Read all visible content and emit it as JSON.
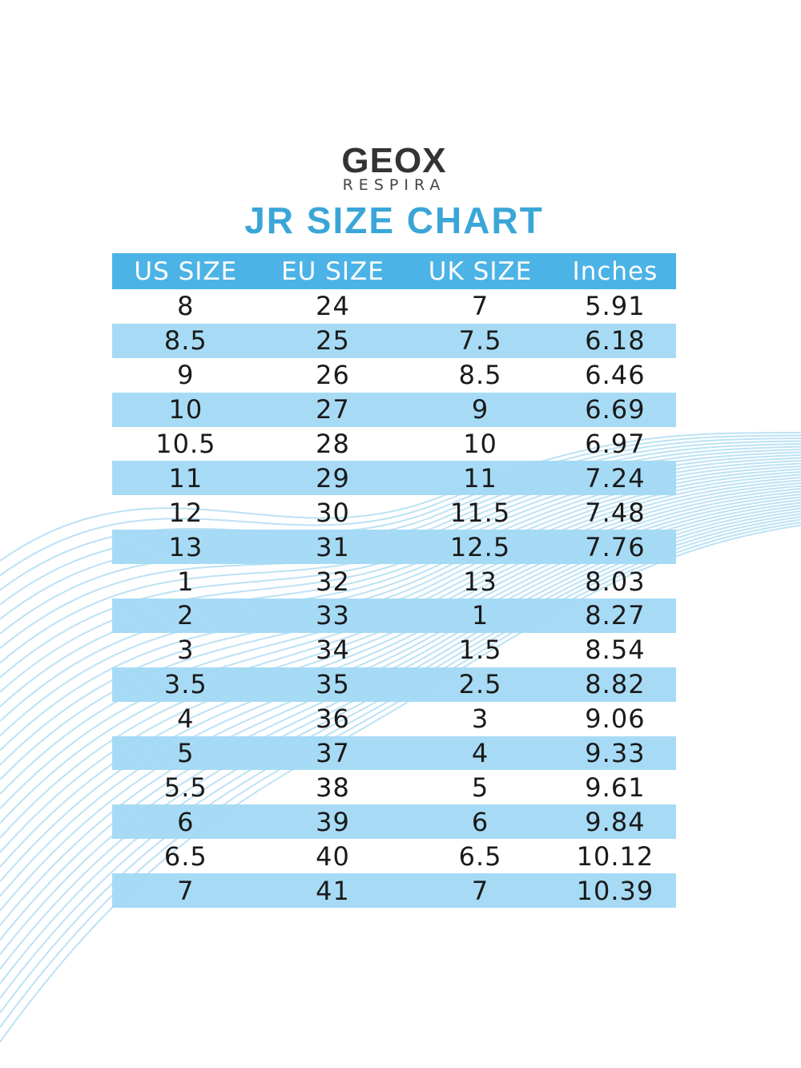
{
  "logo": {
    "brand": "GEOX",
    "tagline": "RESPIRA"
  },
  "title": "JR SIZE CHART",
  "table": {
    "header": [
      "US SIZE",
      "EU SIZE",
      "UK SIZE",
      "Inches"
    ],
    "rows": [
      [
        "8",
        "24",
        "7",
        "5.91"
      ],
      [
        "8.5",
        "25",
        "7.5",
        "6.18"
      ],
      [
        "9",
        "26",
        "8.5",
        "6.46"
      ],
      [
        "10",
        "27",
        "9",
        "6.69"
      ],
      [
        "10.5",
        "28",
        "10",
        "6.97"
      ],
      [
        "11",
        "29",
        "11",
        "7.24"
      ],
      [
        "12",
        "30",
        "11.5",
        "7.48"
      ],
      [
        "13",
        "31",
        "12.5",
        "7.76"
      ],
      [
        "1",
        "32",
        "13",
        "8.03"
      ],
      [
        "2",
        "33",
        "1",
        "8.27"
      ],
      [
        "3",
        "34",
        "1.5",
        "8.54"
      ],
      [
        "3.5",
        "35",
        "2.5",
        "8.82"
      ],
      [
        "4",
        "36",
        "3",
        "9.06"
      ],
      [
        "5",
        "37",
        "4",
        "9.33"
      ],
      [
        "5.5",
        "38",
        "5",
        "9.61"
      ],
      [
        "6",
        "39",
        "6",
        "9.84"
      ],
      [
        "6.5",
        "40",
        "6.5",
        "10.12"
      ],
      [
        "7",
        "41",
        "7",
        "10.39"
      ]
    ]
  }
}
